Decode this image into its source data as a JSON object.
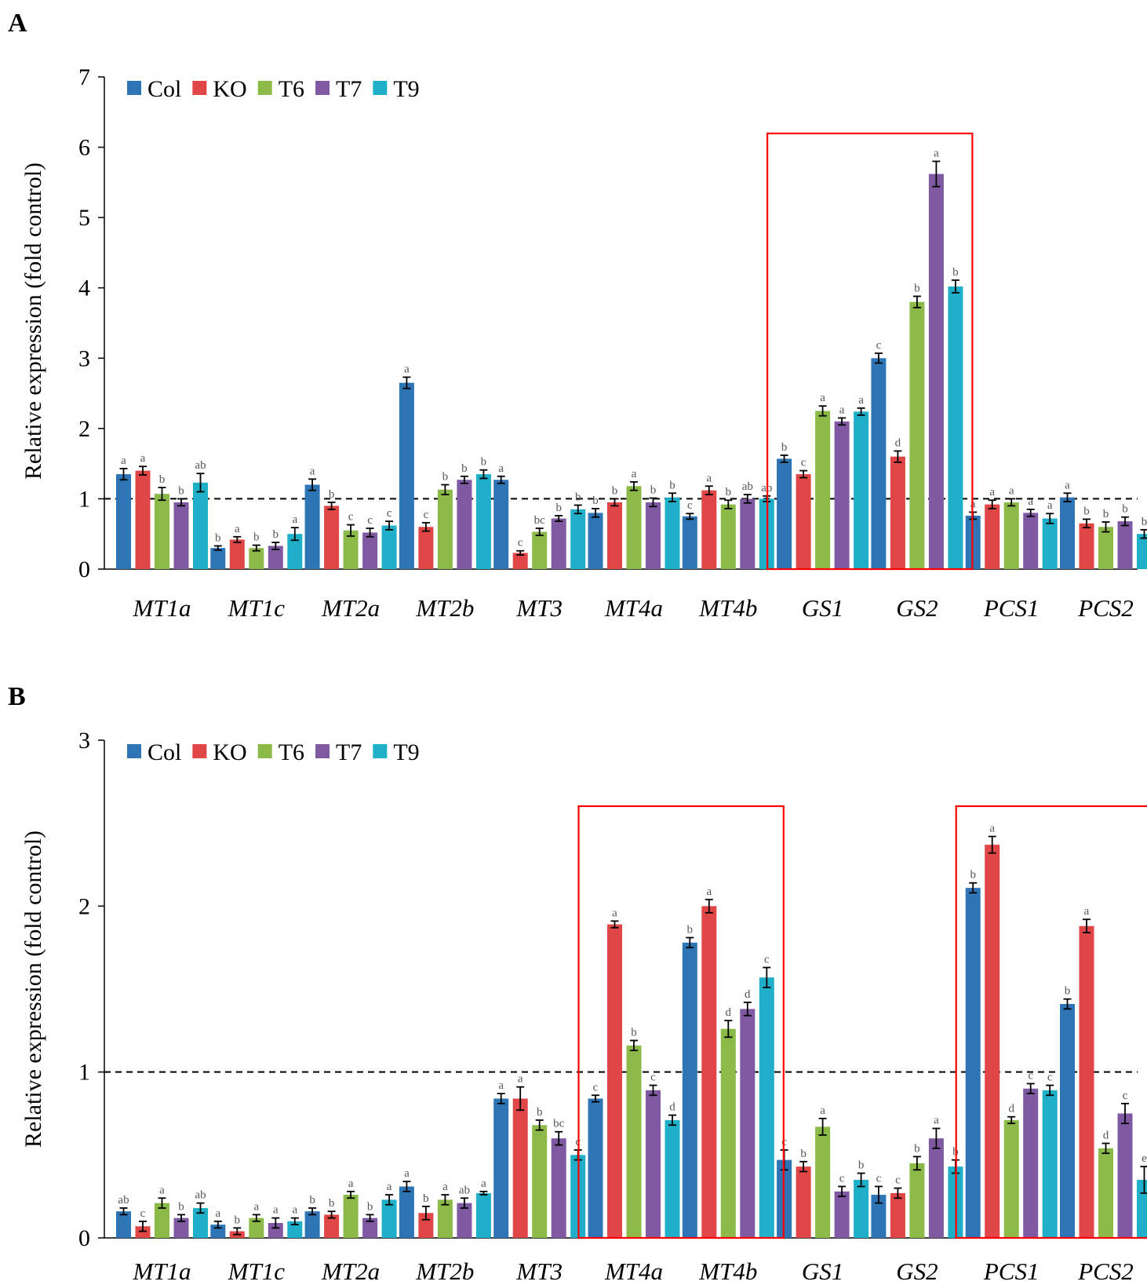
{
  "figure": {
    "series_colors": {
      "Col": "#2e75b6",
      "KO": "#e04646",
      "T6": "#8cba48",
      "T7": "#7f5aa3",
      "T9": "#1fafc8"
    },
    "highlight_color": "#ff0000"
  },
  "chart_data": [
    {
      "panel": "A",
      "type": "bar",
      "title": "",
      "ylabel": "Relative  expression  (fold  control)",
      "xlabel": "",
      "ylim": [
        0,
        7
      ],
      "yticks": [
        "0",
        "1",
        "2",
        "3",
        "4",
        "5",
        "6",
        "7"
      ],
      "reference_line": 1,
      "legend": [
        "Col",
        "KO",
        "T6",
        "T7",
        "T9"
      ],
      "legend_position": "top-left",
      "categories": [
        "MT1a",
        "MT1c",
        "MT2a",
        "MT2b",
        "MT3",
        "MT4a",
        "MT4b",
        "GS1",
        "GS2",
        "PCS1",
        "PCS2"
      ],
      "highlighted_categories": [
        [
          "GS1",
          "GS2"
        ]
      ],
      "series": [
        {
          "name": "Col",
          "values": [
            1.35,
            0.3,
            1.2,
            2.65,
            1.27,
            0.8,
            0.75,
            1.57,
            3.0,
            0.76,
            1.02
          ],
          "errors": [
            0.08,
            0.03,
            0.08,
            0.08,
            0.05,
            0.06,
            0.04,
            0.05,
            0.07,
            0.05,
            0.06
          ],
          "labels": [
            "a",
            "b",
            "a",
            "a",
            "a",
            "b",
            "c",
            "b",
            "c",
            "a",
            "a"
          ]
        },
        {
          "name": "KO",
          "values": [
            1.4,
            0.42,
            0.9,
            0.6,
            0.23,
            0.95,
            1.12,
            1.35,
            1.6,
            0.92,
            0.65
          ],
          "errors": [
            0.06,
            0.04,
            0.05,
            0.06,
            0.03,
            0.05,
            0.06,
            0.05,
            0.08,
            0.06,
            0.06
          ],
          "labels": [
            "a",
            "a",
            "b",
            "c",
            "c",
            "b",
            "a",
            "c",
            "d",
            "a",
            "b"
          ]
        },
        {
          "name": "T6",
          "values": [
            1.07,
            0.3,
            0.55,
            1.13,
            0.53,
            1.18,
            0.92,
            2.25,
            3.8,
            0.95,
            0.6
          ],
          "errors": [
            0.09,
            0.04,
            0.08,
            0.07,
            0.05,
            0.06,
            0.06,
            0.07,
            0.08,
            0.05,
            0.07
          ],
          "labels": [
            "b",
            "b",
            "c",
            "b",
            "bc",
            "a",
            "b",
            "a",
            "b",
            "a",
            "b"
          ]
        },
        {
          "name": "T7",
          "values": [
            0.95,
            0.33,
            0.52,
            1.27,
            0.72,
            0.95,
            1.0,
            2.1,
            5.62,
            0.8,
            0.68
          ],
          "errors": [
            0.05,
            0.05,
            0.06,
            0.05,
            0.04,
            0.06,
            0.06,
            0.05,
            0.18,
            0.05,
            0.06
          ],
          "labels": [
            "b",
            "b",
            "c",
            "b",
            "b",
            "b",
            "ab",
            "a",
            "a",
            "a",
            "b"
          ]
        },
        {
          "name": "T9",
          "values": [
            1.23,
            0.5,
            0.62,
            1.35,
            0.85,
            1.02,
            1.0,
            2.24,
            4.02,
            0.72,
            0.5
          ],
          "errors": [
            0.13,
            0.09,
            0.06,
            0.06,
            0.06,
            0.06,
            0.04,
            0.05,
            0.09,
            0.07,
            0.06
          ],
          "labels": [
            "ab",
            "a",
            "c",
            "b",
            "b",
            "b",
            "ab",
            "a",
            "b",
            "a",
            "b"
          ]
        }
      ]
    },
    {
      "panel": "B",
      "type": "bar",
      "title": "",
      "ylabel": "Relative  expression  (fold  control)",
      "xlabel": "",
      "ylim": [
        0,
        3
      ],
      "yticks": [
        "0",
        "1",
        "2",
        "3"
      ],
      "reference_line": 1,
      "legend": [
        "Col",
        "KO",
        "T6",
        "T7",
        "T9"
      ],
      "legend_position": "top-left",
      "categories": [
        "MT1a",
        "MT1c",
        "MT2a",
        "MT2b",
        "MT3",
        "MT4a",
        "MT4b",
        "GS1",
        "GS2",
        "PCS1",
        "PCS2"
      ],
      "highlighted_categories": [
        [
          "MT4a",
          "MT4b"
        ],
        [
          "PCS1",
          "PCS2"
        ]
      ],
      "series": [
        {
          "name": "Col",
          "values": [
            0.16,
            0.08,
            0.16,
            0.31,
            0.84,
            0.84,
            1.78,
            0.47,
            0.26,
            2.11,
            1.41
          ],
          "errors": [
            0.02,
            0.02,
            0.02,
            0.03,
            0.03,
            0.02,
            0.03,
            0.06,
            0.05,
            0.03,
            0.03
          ],
          "labels": [
            "ab",
            "a",
            "b",
            "a",
            "a",
            "c",
            "b",
            "c",
            "c",
            "b",
            "b"
          ]
        },
        {
          "name": "KO",
          "values": [
            0.07,
            0.04,
            0.14,
            0.15,
            0.84,
            1.89,
            2.0,
            0.43,
            0.27,
            2.37,
            1.88
          ],
          "errors": [
            0.03,
            0.02,
            0.02,
            0.04,
            0.07,
            0.02,
            0.04,
            0.03,
            0.03,
            0.05,
            0.04
          ],
          "labels": [
            "c",
            "b",
            "b",
            "b",
            "a",
            "a",
            "a",
            "b",
            "c",
            "a",
            "a"
          ]
        },
        {
          "name": "T6",
          "values": [
            0.21,
            0.12,
            0.26,
            0.23,
            0.68,
            1.16,
            1.26,
            0.67,
            0.45,
            0.71,
            0.54
          ],
          "errors": [
            0.03,
            0.02,
            0.02,
            0.03,
            0.03,
            0.03,
            0.05,
            0.05,
            0.04,
            0.02,
            0.03
          ],
          "labels": [
            "a",
            "a",
            "a",
            "a",
            "b",
            "b",
            "d",
            "a",
            "b",
            "d",
            "d"
          ]
        },
        {
          "name": "T7",
          "values": [
            0.12,
            0.09,
            0.12,
            0.21,
            0.6,
            0.89,
            1.38,
            0.28,
            0.6,
            0.9,
            0.75
          ],
          "errors": [
            0.02,
            0.03,
            0.02,
            0.03,
            0.04,
            0.03,
            0.04,
            0.03,
            0.06,
            0.03,
            0.06
          ],
          "labels": [
            "b",
            "a",
            "b",
            "ab",
            "bc",
            "c",
            "d",
            "c",
            "a",
            "c",
            "c"
          ]
        },
        {
          "name": "T9",
          "values": [
            0.18,
            0.1,
            0.23,
            0.27,
            0.5,
            0.71,
            1.57,
            0.35,
            0.43,
            0.89,
            0.35
          ],
          "errors": [
            0.03,
            0.02,
            0.03,
            0.01,
            0.03,
            0.03,
            0.06,
            0.04,
            0.04,
            0.03,
            0.08
          ],
          "labels": [
            "ab",
            "a",
            "a",
            "a",
            "c",
            "d",
            "c",
            "b",
            "b",
            "c",
            "e"
          ]
        }
      ]
    }
  ]
}
